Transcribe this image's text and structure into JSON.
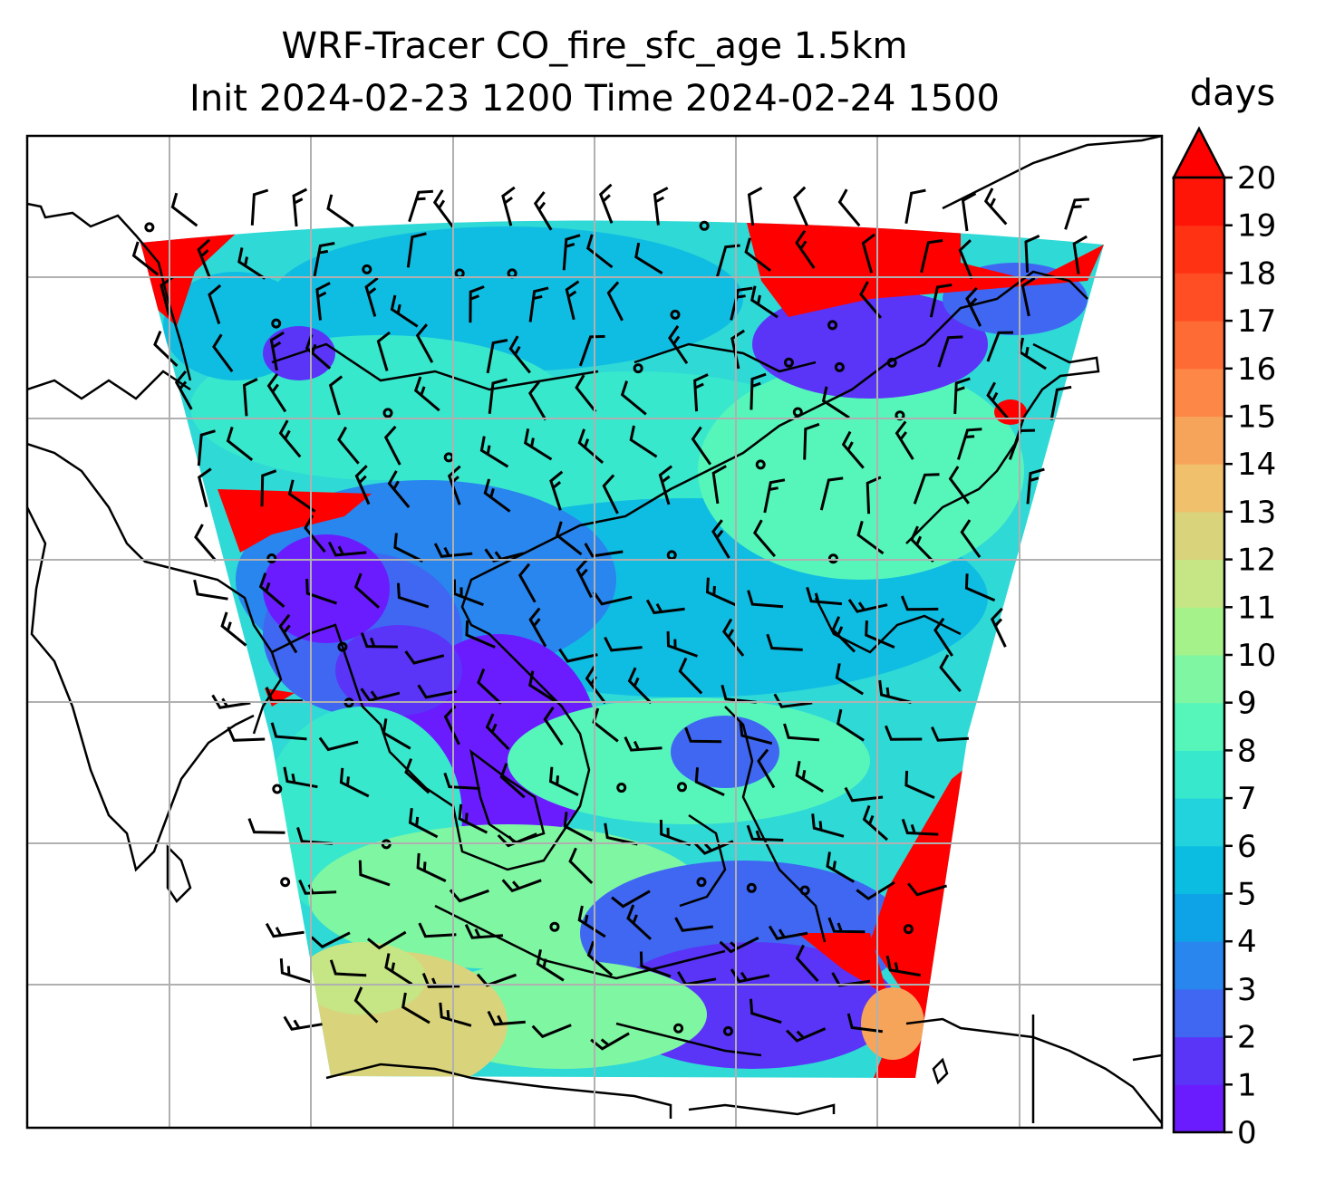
{
  "title_line1": "WRF-Tracer CO_fire_sfc_age 1.5km",
  "title_line2": "Init 2024-02-23 1200 Time 2024-02-24 1500",
  "colorbar": {
    "units": "days",
    "min": 0,
    "max": 20,
    "extend": "max",
    "ticks": [
      "0",
      "1",
      "2",
      "3",
      "4",
      "5",
      "6",
      "7",
      "8",
      "9",
      "10",
      "11",
      "12",
      "13",
      "14",
      "15",
      "16",
      "17",
      "18",
      "19",
      "20"
    ],
    "colors": [
      "#6a1cff",
      "#5a35f8",
      "#3f67f2",
      "#2886ee",
      "#0ea3e6",
      "#0bbde0",
      "#22d2dc",
      "#38e8cc",
      "#56f6bb",
      "#7ff6a2",
      "#a5f28a",
      "#c6e585",
      "#d9d47c",
      "#f0c06c",
      "#f7a45b",
      "#fd8746",
      "#ff6b34",
      "#ff4e24",
      "#ff3314",
      "#ff1508"
    ],
    "over_color": "#ff0000"
  },
  "map": {
    "projection_note": "",
    "gridlines": true
  }
}
